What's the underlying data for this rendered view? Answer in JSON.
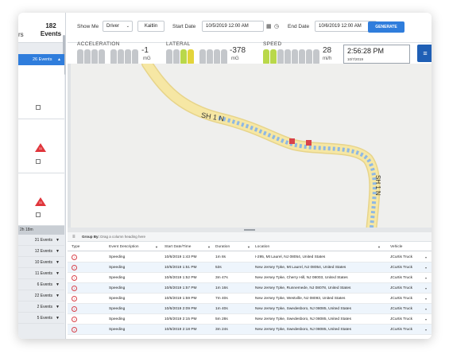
{
  "sidebar": {
    "header_cut": "rs",
    "total_count": "182",
    "total_label": "Events",
    "selected_group": "26 Events",
    "warn_badge_1": "11",
    "warn_badge_2": "11",
    "date_label": "2h 18m",
    "groups": [
      "31 Events",
      "12 Events",
      "10 Events",
      "11 Events",
      "6 Events",
      "22 Events",
      "2 Events",
      "5 Events"
    ]
  },
  "topbar": {
    "show_me_label": "Show Me",
    "show_me_value": "Driver",
    "driver_name": "Kaitlin",
    "start_date_label": "Start Date",
    "start_date_value": "10/5/2019 12:00 AM",
    "end_date_label": "End Date",
    "end_date_value": "10/6/2019 12:00 AM",
    "generate_label": "GENERATE"
  },
  "gauges": {
    "acceleration": {
      "title": "ACCELERATION",
      "value": "-1",
      "unit": "mG"
    },
    "lateral": {
      "title": "LATERAL",
      "value": "-378",
      "unit": "mG"
    },
    "speed": {
      "title": "SPEED",
      "value": "28",
      "unit": "mi/h"
    },
    "time": "2:56:28 PM",
    "date": "10/7/2019"
  },
  "map": {
    "road_label_1": "SH 1 N",
    "road_label_2": "SH 1 N"
  },
  "grid": {
    "group_by_label": "Group By:",
    "group_by_hint": "Drag a column heading here",
    "columns": [
      "Type",
      "Event Description",
      "Start Date/Time",
      "Duration",
      "Location",
      "Vehicle"
    ],
    "rows": [
      {
        "description": "Speeding",
        "start": "10/6/2019 1:43 PM",
        "duration": "1m 8s",
        "location": "I-295, Mt Laurel, NJ 08054, United States",
        "vehicle": "JCurtis Truck"
      },
      {
        "description": "Speeding",
        "start": "10/6/2019 1:51 PM",
        "duration": "53s",
        "location": "New Jersey Tpke, Mt Laurel, NJ 08054, United States",
        "vehicle": "JCurtis Truck"
      },
      {
        "description": "Speeding",
        "start": "10/6/2019 1:52 PM",
        "duration": "3m 47s",
        "location": "New Jersey Tpke, Cherry Hill, NJ 08003, United States",
        "vehicle": "JCurtis Truck"
      },
      {
        "description": "Speeding",
        "start": "10/6/2019 1:57 PM",
        "duration": "1m 16s",
        "location": "New Jersey Tpke, Runnemede, NJ 08078, United States",
        "vehicle": "JCurtis Truck"
      },
      {
        "description": "Speeding",
        "start": "10/6/2019 1:59 PM",
        "duration": "7m 40s",
        "location": "New Jersey Tpke, Westville, NJ 08093, United States",
        "vehicle": "JCurtis Truck"
      },
      {
        "description": "Speeding",
        "start": "10/6/2019 2:09 PM",
        "duration": "1m 40s",
        "location": "New Jersey Tpke, Swedesboro, NJ 08085, United States",
        "vehicle": "JCurtis Truck"
      },
      {
        "description": "Speeding",
        "start": "10/6/2019 2:15 PM",
        "duration": "5m 28s",
        "location": "New Jersey Tpke, Swedesboro, NJ 08085, United States",
        "vehicle": "JCurtis Truck"
      },
      {
        "description": "Speeding",
        "start": "10/6/2019 2:18 PM",
        "duration": "3m 24s",
        "location": "New Jersey Tpke, Swedesboro, NJ 08085, United States",
        "vehicle": "JCurtis Truck"
      }
    ]
  },
  "colors": {
    "accent": "#2f7ddc",
    "road_fill": "#f6e7a4",
    "route_blue": "#8fb8e3",
    "alert_red": "#d8424a",
    "gauge_green": "#b9d84a",
    "gauge_yellow": "#e3d43a"
  }
}
